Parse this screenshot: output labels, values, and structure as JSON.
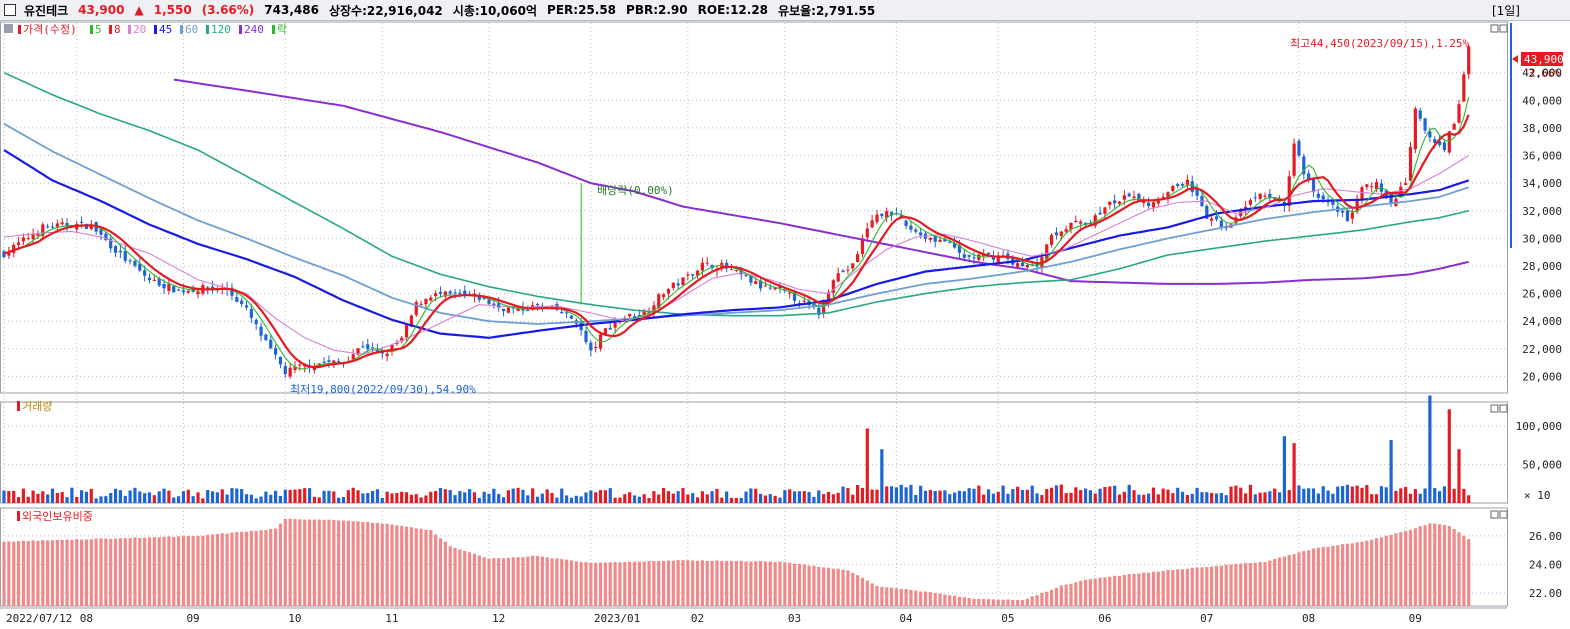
{
  "header": {
    "stock_name": "유진테크",
    "price": "43,900",
    "change_arrow": "▲",
    "change": "1,550",
    "change_pct": "(3.66%)",
    "volume": "743,486",
    "listed_shares": "상장수:22,916,042",
    "market_cap": "시총:10,060억",
    "per": "PER:25.58",
    "pbr": "PBR:2.90",
    "roe": "ROE:12.28",
    "float_ratio": "유보율:2,791.55",
    "period": "[1일]"
  },
  "colors": {
    "up": "#e31b23",
    "down": "#1e64d2",
    "ma5": "#2db82d",
    "ma8": "#e31b23",
    "ma20": "#d680d6",
    "ma45": "#1a1ae6",
    "ma60": "#6f9fd0",
    "ma120": "#27a884",
    "ma240": "#8a2ed0",
    "grid": "#b8bcc6",
    "foreign": "#f08a8a"
  },
  "price_panel": {
    "legend": [
      {
        "label": "가격(수정)",
        "color": "#e31b23"
      },
      {
        "label": "5",
        "color": "#2db82d"
      },
      {
        "label": "8",
        "color": "#e31b23"
      },
      {
        "label": "20",
        "color": "#d680d6"
      },
      {
        "label": "45",
        "color": "#1a1ae6"
      },
      {
        "label": "60",
        "color": "#6f9fd0"
      },
      {
        "label": "120",
        "color": "#27a884"
      },
      {
        "label": "240",
        "color": "#8a2ed0"
      },
      {
        "label": "락",
        "color": "#2db82d"
      }
    ],
    "annotations": {
      "high": "최고44,450(2023/09/15),1.25%",
      "low": "최저19,800(2022/09/30),54.90%",
      "dividend": "배당락(0.00%)",
      "last_price": "43,900",
      "last_pct": "3.66%"
    }
  },
  "volume_panel": {
    "title": "거래량",
    "unit": "× 10"
  },
  "foreign_panel": {
    "title": "외국인보유비중"
  },
  "chart_data": {
    "type": "candlestick",
    "x_labels": [
      "2022/07/12",
      "08",
      "09",
      "10",
      "11",
      "12",
      "2023/01",
      "02",
      "03",
      "04",
      "05",
      "06",
      "07",
      "08",
      "09"
    ],
    "x_label_days": [
      0,
      15,
      37,
      58,
      78,
      100,
      121,
      141,
      161,
      184,
      205,
      225,
      246,
      267,
      289
    ],
    "days": 297,
    "price_ticks": [
      "20,000",
      "22,000",
      "24,000",
      "26,000",
      "28,000",
      "30,000",
      "32,000",
      "34,000",
      "36,000",
      "38,000",
      "40,000",
      "42,000"
    ],
    "price_tick_values": [
      20000,
      22000,
      24000,
      26000,
      28000,
      30000,
      32000,
      34000,
      36000,
      38000,
      40000,
      42000
    ],
    "price_range": [
      18800,
      45600
    ],
    "volume_ticks": [
      "50,000",
      "100,000"
    ],
    "volume_tick_values": [
      50000,
      100000
    ],
    "volume_range": [
      0,
      125000
    ],
    "foreign_ticks": [
      "22.00",
      "24.00",
      "26.00"
    ],
    "foreign_tick_values": [
      22,
      24,
      26
    ],
    "foreign_range": [
      21.1,
      27.6
    ],
    "close_path": [
      [
        0,
        28900
      ],
      [
        8,
        30800
      ],
      [
        14,
        31000
      ],
      [
        18,
        30900
      ],
      [
        24,
        28800
      ],
      [
        30,
        27000
      ],
      [
        36,
        26200
      ],
      [
        42,
        26400
      ],
      [
        46,
        26300
      ],
      [
        50,
        24800
      ],
      [
        54,
        22400
      ],
      [
        58,
        20300
      ],
      [
        62,
        20800
      ],
      [
        66,
        21000
      ],
      [
        70,
        21000
      ],
      [
        74,
        22300
      ],
      [
        78,
        21500
      ],
      [
        82,
        22700
      ],
      [
        85,
        25200
      ],
      [
        88,
        25900
      ],
      [
        94,
        25900
      ],
      [
        98,
        25700
      ],
      [
        102,
        25000
      ],
      [
        106,
        24800
      ],
      [
        110,
        25100
      ],
      [
        114,
        24800
      ],
      [
        118,
        24000
      ],
      [
        121,
        21700
      ],
      [
        124,
        23400
      ],
      [
        128,
        24300
      ],
      [
        132,
        24600
      ],
      [
        136,
        26100
      ],
      [
        140,
        27000
      ],
      [
        144,
        28100
      ],
      [
        148,
        28000
      ],
      [
        152,
        27300
      ],
      [
        156,
        26500
      ],
      [
        160,
        26200
      ],
      [
        164,
        25500
      ],
      [
        168,
        24600
      ],
      [
        171,
        27200
      ],
      [
        175,
        28000
      ],
      [
        178,
        30800
      ],
      [
        182,
        32200
      ],
      [
        186,
        30900
      ],
      [
        190,
        30100
      ],
      [
        194,
        29800
      ],
      [
        198,
        28600
      ],
      [
        202,
        28700
      ],
      [
        206,
        28700
      ],
      [
        210,
        27900
      ],
      [
        213,
        28100
      ],
      [
        216,
        30300
      ],
      [
        220,
        31000
      ],
      [
        224,
        31200
      ],
      [
        228,
        32500
      ],
      [
        232,
        33000
      ],
      [
        236,
        32500
      ],
      [
        240,
        33500
      ],
      [
        244,
        34200
      ],
      [
        248,
        31500
      ],
      [
        252,
        30800
      ],
      [
        256,
        32500
      ],
      [
        260,
        33200
      ],
      [
        264,
        32300
      ],
      [
        266,
        37000
      ],
      [
        268,
        34800
      ],
      [
        271,
        32800
      ],
      [
        274,
        32600
      ],
      [
        277,
        31200
      ],
      [
        280,
        33600
      ],
      [
        283,
        33900
      ],
      [
        286,
        32300
      ],
      [
        289,
        34100
      ],
      [
        291,
        39200
      ],
      [
        294,
        37200
      ],
      [
        297,
        36600
      ],
      [
        300,
        39500
      ],
      [
        302,
        43900
      ]
    ],
    "ma": {
      "ma20": [
        [
          0,
          30100
        ],
        [
          8,
          30400
        ],
        [
          14,
          30500
        ],
        [
          20,
          30100
        ],
        [
          30,
          28900
        ],
        [
          40,
          27000
        ],
        [
          50,
          26000
        ],
        [
          56,
          24200
        ],
        [
          62,
          22800
        ],
        [
          68,
          21900
        ],
        [
          74,
          21600
        ],
        [
          80,
          22300
        ],
        [
          86,
          23200
        ],
        [
          92,
          24200
        ],
        [
          98,
          25200
        ],
        [
          106,
          25000
        ],
        [
          114,
          25100
        ],
        [
          121,
          24600
        ],
        [
          128,
          24000
        ],
        [
          134,
          24600
        ],
        [
          140,
          25800
        ],
        [
          146,
          27100
        ],
        [
          152,
          27500
        ],
        [
          158,
          27000
        ],
        [
          164,
          26300
        ],
        [
          170,
          26000
        ],
        [
          176,
          27700
        ],
        [
          182,
          29200
        ],
        [
          188,
          30100
        ],
        [
          194,
          30300
        ],
        [
          200,
          29800
        ],
        [
          206,
          29200
        ],
        [
          212,
          28700
        ],
        [
          218,
          29100
        ],
        [
          224,
          30100
        ],
        [
          230,
          31100
        ],
        [
          236,
          32100
        ],
        [
          242,
          32600
        ],
        [
          248,
          32700
        ],
        [
          254,
          31800
        ],
        [
          260,
          32200
        ],
        [
          266,
          33100
        ],
        [
          272,
          33600
        ],
        [
          278,
          33400
        ],
        [
          284,
          33200
        ],
        [
          290,
          33600
        ],
        [
          296,
          34700
        ],
        [
          302,
          36000
        ]
      ],
      "ma45": [
        [
          0,
          36400
        ],
        [
          10,
          34200
        ],
        [
          20,
          32700
        ],
        [
          30,
          31000
        ],
        [
          40,
          29600
        ],
        [
          50,
          28500
        ],
        [
          60,
          27200
        ],
        [
          70,
          25500
        ],
        [
          80,
          24100
        ],
        [
          90,
          23100
        ],
        [
          100,
          22800
        ],
        [
          110,
          23300
        ],
        [
          121,
          23800
        ],
        [
          130,
          24100
        ],
        [
          140,
          24500
        ],
        [
          150,
          24800
        ],
        [
          160,
          25000
        ],
        [
          170,
          25500
        ],
        [
          180,
          26700
        ],
        [
          190,
          27600
        ],
        [
          200,
          28000
        ],
        [
          210,
          28400
        ],
        [
          220,
          29300
        ],
        [
          230,
          30200
        ],
        [
          240,
          30800
        ],
        [
          250,
          31800
        ],
        [
          260,
          32300
        ],
        [
          270,
          32700
        ],
        [
          280,
          32800
        ],
        [
          290,
          33200
        ],
        [
          296,
          33500
        ],
        [
          302,
          34200
        ]
      ],
      "ma60": [
        [
          0,
          38300
        ],
        [
          10,
          36300
        ],
        [
          20,
          34600
        ],
        [
          30,
          32900
        ],
        [
          40,
          31300
        ],
        [
          50,
          30000
        ],
        [
          60,
          28600
        ],
        [
          70,
          27300
        ],
        [
          80,
          25700
        ],
        [
          90,
          24600
        ],
        [
          100,
          24000
        ],
        [
          110,
          23800
        ],
        [
          121,
          24000
        ],
        [
          130,
          24200
        ],
        [
          140,
          24400
        ],
        [
          150,
          24600
        ],
        [
          160,
          24800
        ],
        [
          170,
          25200
        ],
        [
          180,
          26000
        ],
        [
          190,
          26700
        ],
        [
          200,
          27100
        ],
        [
          210,
          27600
        ],
        [
          220,
          28300
        ],
        [
          230,
          29200
        ],
        [
          240,
          30000
        ],
        [
          250,
          30700
        ],
        [
          260,
          31400
        ],
        [
          270,
          31900
        ],
        [
          280,
          32300
        ],
        [
          290,
          32700
        ],
        [
          296,
          33000
        ],
        [
          302,
          33700
        ]
      ],
      "ma120": [
        [
          0,
          42000
        ],
        [
          10,
          40400
        ],
        [
          20,
          39000
        ],
        [
          30,
          37800
        ],
        [
          40,
          36400
        ],
        [
          50,
          34500
        ],
        [
          60,
          32600
        ],
        [
          70,
          30700
        ],
        [
          80,
          28700
        ],
        [
          90,
          27400
        ],
        [
          100,
          26500
        ],
        [
          110,
          25800
        ],
        [
          121,
          25200
        ],
        [
          130,
          24800
        ],
        [
          140,
          24500
        ],
        [
          150,
          24400
        ],
        [
          160,
          24400
        ],
        [
          170,
          24600
        ],
        [
          180,
          25400
        ],
        [
          190,
          26000
        ],
        [
          200,
          26500
        ],
        [
          210,
          26800
        ],
        [
          220,
          27000
        ],
        [
          230,
          27800
        ],
        [
          240,
          28800
        ],
        [
          250,
          29300
        ],
        [
          260,
          29800
        ],
        [
          270,
          30200
        ],
        [
          280,
          30600
        ],
        [
          290,
          31200
        ],
        [
          296,
          31500
        ],
        [
          302,
          32000
        ]
      ],
      "ma240": [
        [
          35,
          41500
        ],
        [
          50,
          40700
        ],
        [
          70,
          39600
        ],
        [
          90,
          37700
        ],
        [
          110,
          35500
        ],
        [
          121,
          34000
        ],
        [
          130,
          33400
        ],
        [
          140,
          32300
        ],
        [
          160,
          31100
        ],
        [
          180,
          29700
        ],
        [
          200,
          28300
        ],
        [
          210,
          27800
        ],
        [
          220,
          26900
        ],
        [
          230,
          26800
        ],
        [
          240,
          26700
        ],
        [
          250,
          26700
        ],
        [
          260,
          26800
        ],
        [
          270,
          27000
        ],
        [
          280,
          27100
        ],
        [
          290,
          27400
        ],
        [
          296,
          27800
        ],
        [
          302,
          28300
        ]
      ]
    },
    "volume_spikes": [
      [
        178,
        97000
      ],
      [
        181,
        70000
      ],
      [
        264,
        87000
      ],
      [
        266,
        78000
      ],
      [
        286,
        82000
      ],
      [
        294,
        140000
      ],
      [
        298,
        122000
      ],
      [
        300,
        70000
      ]
    ],
    "foreign_path": [
      [
        0,
        25.6
      ],
      [
        20,
        25.8
      ],
      [
        40,
        26.0
      ],
      [
        56,
        26.5
      ],
      [
        58,
        27.2
      ],
      [
        70,
        27.1
      ],
      [
        80,
        26.8
      ],
      [
        88,
        26.4
      ],
      [
        92,
        25.3
      ],
      [
        100,
        24.4
      ],
      [
        110,
        24.6
      ],
      [
        121,
        24.1
      ],
      [
        140,
        24.3
      ],
      [
        160,
        24.2
      ],
      [
        174,
        23.6
      ],
      [
        180,
        22.5
      ],
      [
        190,
        22.1
      ],
      [
        200,
        21.6
      ],
      [
        210,
        21.5
      ],
      [
        218,
        22.5
      ],
      [
        224,
        23.0
      ],
      [
        240,
        23.6
      ],
      [
        260,
        24.2
      ],
      [
        270,
        25.1
      ],
      [
        280,
        25.6
      ],
      [
        290,
        26.4
      ],
      [
        294,
        26.9
      ],
      [
        298,
        26.7
      ],
      [
        302,
        25.8
      ]
    ]
  }
}
